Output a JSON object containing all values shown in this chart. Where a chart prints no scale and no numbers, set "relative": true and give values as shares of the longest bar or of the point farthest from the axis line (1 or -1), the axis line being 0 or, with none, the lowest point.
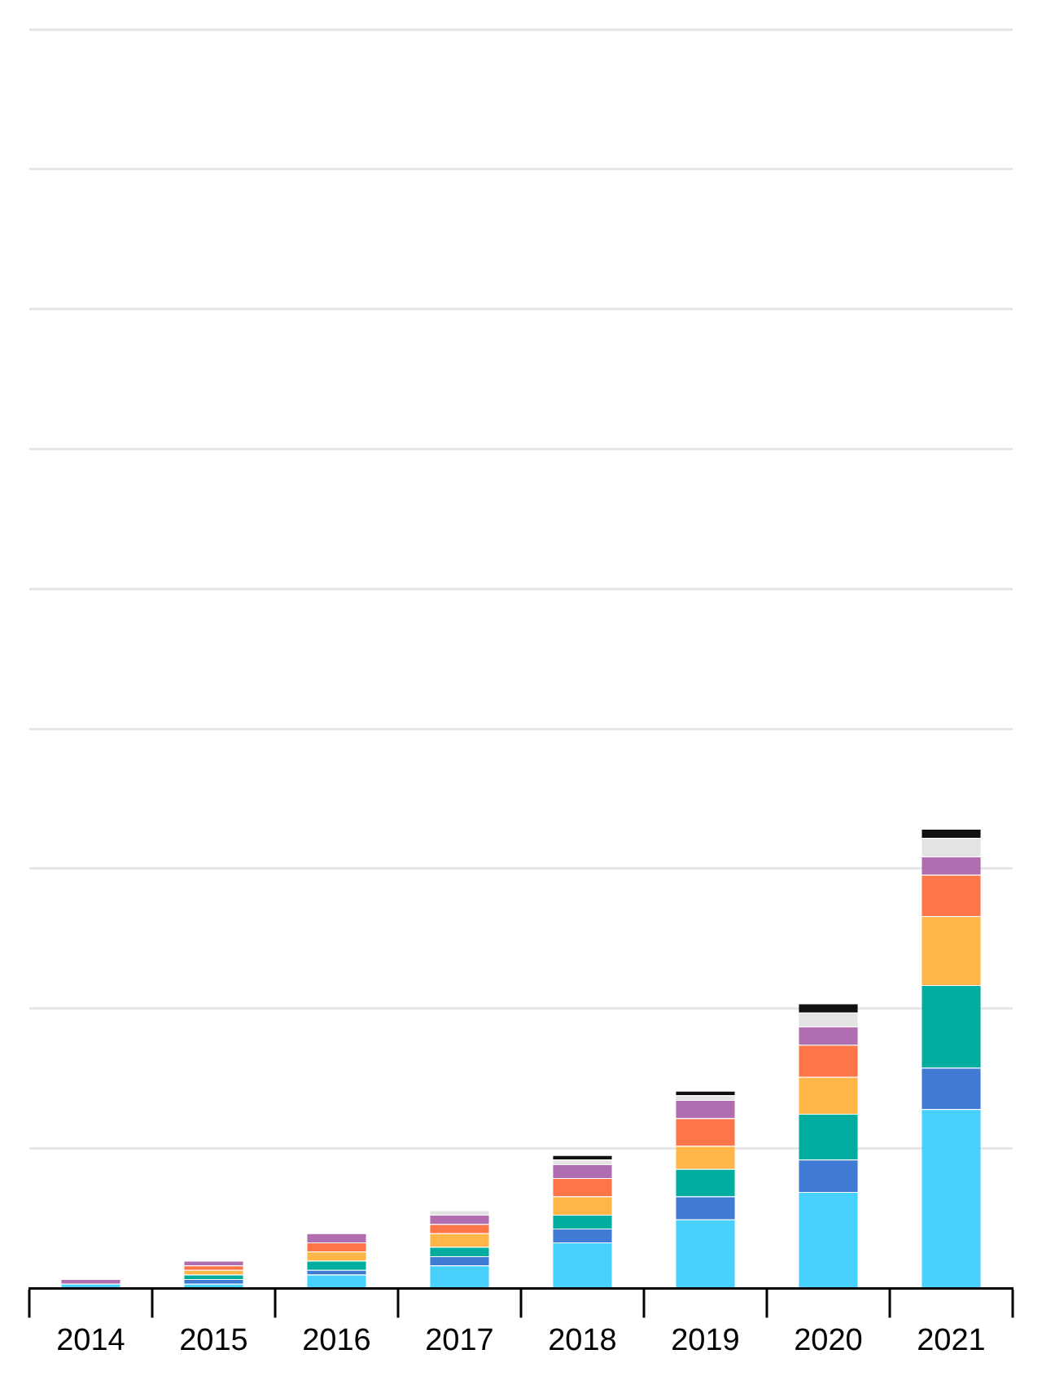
{
  "chart_data": {
    "type": "bar",
    "stacked": true,
    "relative": true,
    "grid": "y",
    "legend": false,
    "categories": [
      "2014",
      "2015",
      "2016",
      "2017",
      "2018",
      "2019",
      "2020",
      "2021"
    ],
    "series": [
      {
        "color": "#48d1ff",
        "values": [
          0.01,
          0.01,
          0.03,
          0.05,
          0.1,
          0.15,
          0.21,
          0.39
        ]
      },
      {
        "color": "#3f7bd4",
        "values": [
          null,
          0.01,
          0.01,
          0.02,
          0.03,
          0.05,
          0.07,
          0.09
        ]
      },
      {
        "color": "#00ad9f",
        "values": [
          null,
          0.01,
          0.02,
          0.02,
          0.03,
          0.06,
          0.1,
          0.18
        ]
      },
      {
        "color": "#ffb547",
        "values": [
          null,
          0.01,
          0.02,
          0.03,
          0.04,
          0.05,
          0.08,
          0.15
        ]
      },
      {
        "color": "#ff754a",
        "values": [
          null,
          0.01,
          0.02,
          0.02,
          0.04,
          0.06,
          0.07,
          0.09
        ]
      },
      {
        "color": "#b06db0",
        "values": [
          0.01,
          0.01,
          0.02,
          0.02,
          0.03,
          0.04,
          0.04,
          0.04
        ]
      },
      {
        "color": "#e3e3e3",
        "values": [
          null,
          null,
          null,
          0.01,
          0.01,
          0.01,
          0.03,
          0.04
        ]
      },
      {
        "color": "#111111",
        "values": [
          null,
          null,
          null,
          null,
          0.01,
          0.01,
          0.02,
          0.02
        ]
      }
    ]
  }
}
